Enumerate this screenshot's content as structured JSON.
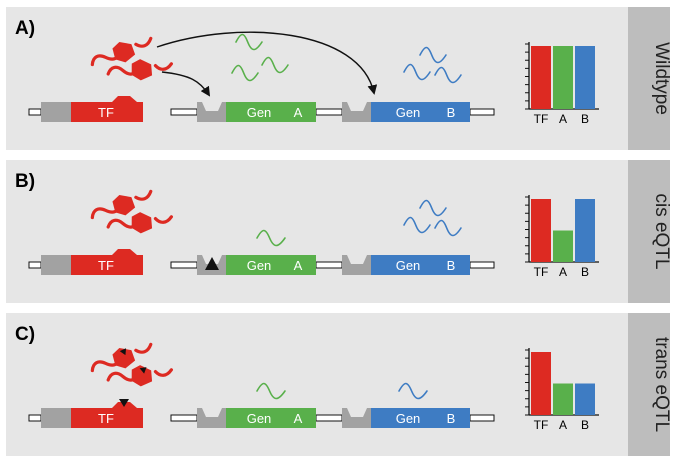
{
  "colors": {
    "panel_bg": "#e6e6e6",
    "side_tab": "#bdbdbd",
    "tf_red": "#dd2a22",
    "gene_green": "#59b04b",
    "gene_blue": "#3e7cc3",
    "promoter_gray": "#a2a2a2",
    "line": "#111111"
  },
  "panels": [
    {
      "id": "A",
      "label": "A)",
      "condition": "Wildtype",
      "tf_label": "TF",
      "gene_a": {
        "word": "Gen",
        "letter": "A"
      },
      "gene_b": {
        "word": "Gen",
        "letter": "B"
      },
      "transcripts_a": 3,
      "transcripts_b": 3,
      "arrows": true,
      "mutation": "none",
      "bars": {
        "categories": [
          "TF",
          "A",
          "B"
        ],
        "values": [
          1.0,
          1.0,
          1.0
        ]
      }
    },
    {
      "id": "B",
      "label": "B)",
      "condition": "cis eQTL",
      "tf_label": "TF",
      "gene_a": {
        "word": "Gen",
        "letter": "A"
      },
      "gene_b": {
        "word": "Gen",
        "letter": "B"
      },
      "transcripts_a": 1,
      "transcripts_b": 3,
      "arrows": false,
      "mutation": "promoter_a",
      "bars": {
        "categories": [
          "TF",
          "A",
          "B"
        ],
        "values": [
          1.0,
          0.5,
          1.0
        ]
      }
    },
    {
      "id": "C",
      "label": "C)",
      "condition": "trans eQTL",
      "tf_label": "TF",
      "gene_a": {
        "word": "Gen",
        "letter": "A"
      },
      "gene_b": {
        "word": "Gen",
        "letter": "B"
      },
      "transcripts_a": 1,
      "transcripts_b": 1,
      "arrows": false,
      "mutation": "tf",
      "bars": {
        "categories": [
          "TF",
          "A",
          "B"
        ],
        "values": [
          1.0,
          0.5,
          0.5
        ]
      }
    }
  ]
}
